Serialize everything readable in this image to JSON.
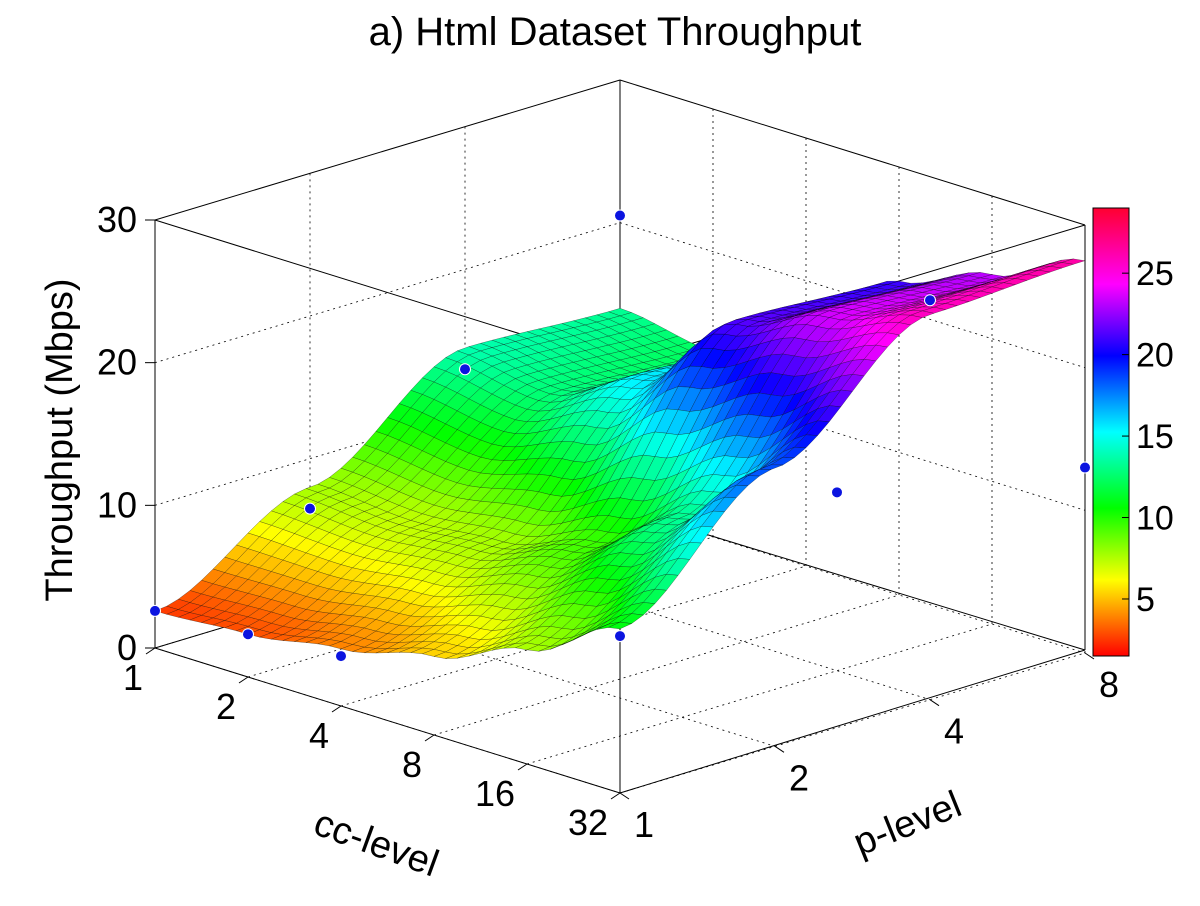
{
  "chart_data": {
    "type": "surface3d",
    "title": "a) Html Dataset Throughput",
    "xlabel": "cc-level",
    "ylabel": "p-level",
    "zlabel": "Throughput (Mbps)",
    "x_ticks": [
      "1",
      "2",
      "4",
      "8",
      "16",
      "32"
    ],
    "y_ticks": [
      "1",
      "2",
      "4",
      "8"
    ],
    "z_ticks": [
      "0",
      "10",
      "20",
      "30"
    ],
    "zlim": [
      0,
      30
    ],
    "x_scale": "log2",
    "y_scale": "log2",
    "colormap": "hsv-like (red low → magenta high)",
    "colorbar_ticks": [
      "5",
      "10",
      "15",
      "20",
      "25"
    ],
    "colorbar_range": [
      1.5,
      29
    ],
    "grid": true,
    "cc_levels": [
      1,
      2,
      4,
      8,
      16,
      32
    ],
    "p_levels": [
      1,
      2,
      4,
      8
    ],
    "throughput": [
      [
        2.6,
        8.0,
        14.5,
        14.0
      ],
      [
        3.0,
        7.5,
        13.5,
        13.0
      ],
      [
        4.0,
        8.0,
        16.5,
        16.0
      ],
      [
        5.5,
        10.0,
        22.5,
        22.0
      ],
      [
        8.0,
        14.0,
        25.0,
        24.5
      ],
      [
        11.5,
        19.5,
        27.0,
        27.5
      ]
    ],
    "measured_points": [
      {
        "cc": 1,
        "p": 1,
        "z": 2.6
      },
      {
        "cc": 2,
        "p": 1,
        "z": 3.0
      },
      {
        "cc": 4,
        "p": 1,
        "z": 3.5
      },
      {
        "cc": 1,
        "p": 2,
        "z": 6.5
      },
      {
        "cc": 1,
        "p": 4,
        "z": 13.0
      },
      {
        "cc": 1,
        "p": 8,
        "z": 20.5
      },
      {
        "cc": 32,
        "p": 1,
        "z": 11.0
      },
      {
        "cc": 32,
        "p": 8,
        "z": 13.0
      },
      {
        "cc": 16,
        "p": 4,
        "z": 12.5
      },
      {
        "cc": 32,
        "p": 4,
        "z": 28.0
      }
    ]
  }
}
